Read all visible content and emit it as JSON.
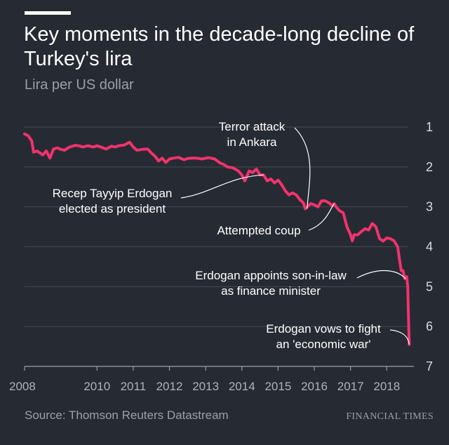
{
  "header": {
    "title": "Key moments in the decade-long decline of Turkey's lira",
    "subtitle": "Lira per US dollar"
  },
  "footer": {
    "source": "Source: Thomson Reuters Datastream",
    "brand": "FINANCIAL TIMES"
  },
  "colors": {
    "background": "#262a33",
    "line": "#f2336c",
    "text": "#ffffff",
    "muted": "#9aa0a8",
    "grid": "#454a54"
  },
  "chart_data": {
    "type": "line",
    "title": "Key moments in the decade-long decline of Turkey's lira",
    "ylabel": "Lira per US dollar",
    "xlabel": "",
    "y_inverted": true,
    "y_axis_side": "right",
    "ylim": [
      7,
      1
    ],
    "xlim": [
      2008.0,
      2018.75
    ],
    "y_ticks": [
      "1",
      "2",
      "3",
      "4",
      "5",
      "6",
      "7"
    ],
    "x_ticks": [
      "2008",
      "2010",
      "2011",
      "2012",
      "2013",
      "2014",
      "2015",
      "2016",
      "2017",
      "2018"
    ],
    "grid": true,
    "series": [
      {
        "x": [
          2008.0,
          2008.1,
          2008.2,
          2008.25,
          2008.35,
          2008.5,
          2008.6,
          2008.7,
          2008.8,
          2008.9,
          2009.0,
          2009.1,
          2009.25,
          2009.4,
          2009.5,
          2009.6,
          2009.75,
          2009.9,
          2010.0,
          2010.1,
          2010.25,
          2010.4,
          2010.5,
          2010.6,
          2010.75,
          2010.9,
          2011.0,
          2011.1,
          2011.25,
          2011.4,
          2011.5,
          2011.6,
          2011.7,
          2011.8,
          2011.9,
          2012.0,
          2012.1,
          2012.25,
          2012.4,
          2012.5,
          2012.6,
          2012.75,
          2012.9,
          2013.0,
          2013.1,
          2013.25,
          2013.4,
          2013.5,
          2013.6,
          2013.75,
          2013.9,
          2014.0,
          2014.08,
          2014.2,
          2014.3,
          2014.4,
          2014.5,
          2014.6,
          2014.7,
          2014.8,
          2014.9,
          2015.0,
          2015.1,
          2015.2,
          2015.3,
          2015.4,
          2015.5,
          2015.6,
          2015.7,
          2015.75,
          2015.8,
          2015.9,
          2016.0,
          2016.1,
          2016.2,
          2016.3,
          2016.4,
          2016.5,
          2016.55,
          2016.6,
          2016.7,
          2016.8,
          2016.9,
          2016.95,
          2017.0,
          2017.05,
          2017.1,
          2017.2,
          2017.3,
          2017.4,
          2017.5,
          2017.6,
          2017.7,
          2017.8,
          2017.9,
          2018.0,
          2018.1,
          2018.2,
          2018.3,
          2018.35,
          2018.4,
          2018.45,
          2018.5,
          2018.55,
          2018.58,
          2018.6,
          2018.62
        ],
        "values": [
          1.17,
          1.22,
          1.35,
          1.63,
          1.6,
          1.7,
          1.6,
          1.78,
          1.55,
          1.52,
          1.56,
          1.58,
          1.5,
          1.46,
          1.47,
          1.5,
          1.47,
          1.5,
          1.47,
          1.5,
          1.55,
          1.48,
          1.5,
          1.47,
          1.45,
          1.38,
          1.5,
          1.58,
          1.56,
          1.55,
          1.65,
          1.73,
          1.85,
          1.78,
          1.89,
          1.8,
          1.78,
          1.76,
          1.82,
          1.79,
          1.78,
          1.78,
          1.8,
          1.78,
          1.77,
          1.8,
          1.9,
          1.94,
          2.0,
          2.02,
          2.1,
          2.2,
          2.35,
          2.1,
          2.14,
          2.05,
          2.2,
          2.2,
          2.35,
          2.3,
          2.4,
          2.33,
          2.45,
          2.6,
          2.7,
          2.65,
          2.7,
          2.82,
          2.9,
          3.05,
          3.0,
          2.92,
          2.95,
          3.0,
          2.85,
          2.85,
          2.9,
          2.97,
          2.92,
          3.0,
          3.1,
          3.15,
          3.5,
          3.6,
          3.7,
          3.85,
          3.7,
          3.7,
          3.62,
          3.55,
          3.58,
          3.42,
          3.5,
          3.8,
          3.86,
          3.78,
          3.8,
          3.85,
          4.0,
          4.3,
          4.6,
          4.6,
          4.8,
          4.75,
          5.0,
          5.8,
          6.45
        ]
      }
    ],
    "annotations": [
      {
        "label": "Terror attack in Ankara",
        "lines": [
          "Terror attack",
          "in Ankara"
        ],
        "x": 2015.8,
        "y": 3.05
      },
      {
        "label": "Recep Tayyip Erdogan elected as president",
        "lines": [
          "Recep Tayyip Erdogan",
          "elected as president"
        ],
        "x": 2014.6,
        "y": 2.2
      },
      {
        "label": "Attempted coup",
        "lines": [
          "Attempted coup"
        ],
        "x": 2016.55,
        "y": 2.92
      },
      {
        "label": "Erdogan appoints son-in-law as finance minister",
        "lines": [
          "Erdogan appoints son-in-law",
          "as finance minister"
        ],
        "x": 2018.52,
        "y": 4.8
      },
      {
        "label": "Erdogan vows to fight an 'economic war'",
        "lines": [
          "Erdogan vows to fight",
          "an 'economic war'"
        ],
        "x": 2018.62,
        "y": 6.45
      }
    ]
  }
}
